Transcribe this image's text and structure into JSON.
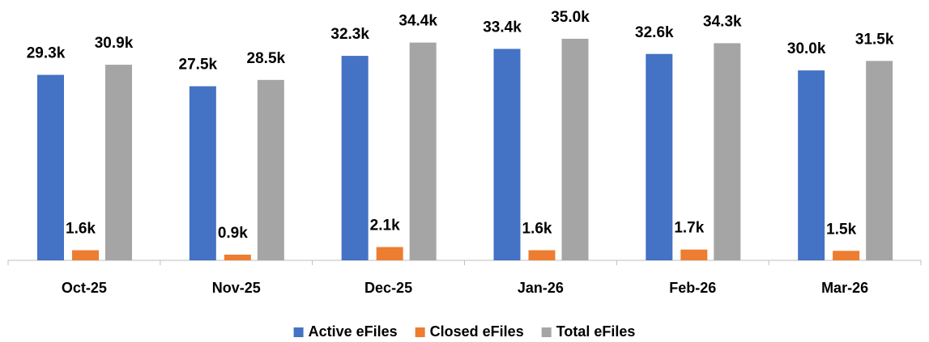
{
  "chart_data": {
    "type": "bar",
    "categories": [
      "Oct-25",
      "Nov-25",
      "Dec-25",
      "Jan-26",
      "Feb-26",
      "Mar-26"
    ],
    "series": [
      {
        "name": "Active eFiles",
        "color": "#4472c4",
        "values": [
          29.3,
          27.5,
          32.3,
          33.4,
          32.6,
          30.0
        ],
        "value_labels": [
          "29.3k",
          "27.5k",
          "32.3k",
          "33.4k",
          "32.6k",
          "30.0k"
        ]
      },
      {
        "name": "Closed eFiles",
        "color": "#ed7d31",
        "values": [
          1.6,
          0.9,
          2.1,
          1.6,
          1.7,
          1.5
        ],
        "value_labels": [
          "1.6k",
          "0.9k",
          "2.1k",
          "1.6k",
          "1.7k",
          "1.5k"
        ]
      },
      {
        "name": "Total eFiles",
        "color": "#a5a5a5",
        "values": [
          30.9,
          28.5,
          34.4,
          35.0,
          34.3,
          31.5
        ],
        "value_labels": [
          "30.9k",
          "28.5k",
          "34.4k",
          "35.0k",
          "34.3k",
          "31.5k"
        ]
      }
    ],
    "legend": "bottom"
  }
}
